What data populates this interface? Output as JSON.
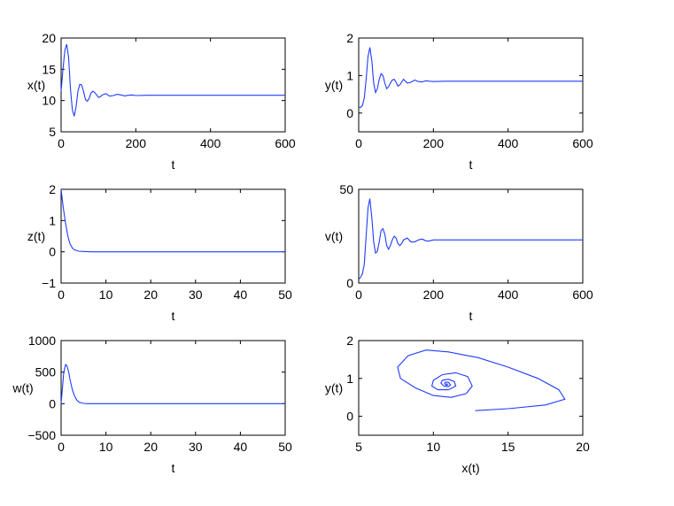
{
  "colors": {
    "line": "#1f3bff",
    "axes": "#000000",
    "background": "#ffffff"
  },
  "chart_data": [
    {
      "id": "x",
      "type": "line",
      "xlabel": "t",
      "ylabel": "x(t)",
      "xlim": [
        0,
        600
      ],
      "ylim": [
        5,
        20
      ],
      "xticks": [
        0,
        200,
        400,
        600
      ],
      "yticks": [
        5,
        10,
        15,
        20
      ],
      "xtick_labels": [
        "0",
        "200",
        "400",
        "600"
      ],
      "ytick_labels": [
        "5",
        "10",
        "15",
        "20"
      ],
      "series": [
        {
          "x": [
            0,
            5,
            10,
            15,
            20,
            25,
            30,
            35,
            40,
            45,
            50,
            55,
            60,
            65,
            70,
            75,
            80,
            85,
            90,
            95,
            100,
            105,
            110,
            120,
            130,
            140,
            150,
            160,
            170,
            180,
            190,
            200,
            230,
            260,
            300,
            400,
            500,
            600
          ],
          "y": [
            11.5,
            15.0,
            18.0,
            19.0,
            17.0,
            12.0,
            8.5,
            7.5,
            9.0,
            11.5,
            12.6,
            12.5,
            11.5,
            10.2,
            9.9,
            10.3,
            11.2,
            11.5,
            11.3,
            10.9,
            10.5,
            10.6,
            10.9,
            11.1,
            10.7,
            10.8,
            11.0,
            10.9,
            10.75,
            10.85,
            10.9,
            10.8,
            10.85,
            10.85,
            10.85,
            10.85,
            10.85,
            10.85
          ]
        }
      ]
    },
    {
      "id": "y",
      "type": "line",
      "xlabel": "t",
      "ylabel": "y(t)",
      "xlim": [
        0,
        600
      ],
      "ylim": [
        -0.5,
        2
      ],
      "xticks": [
        0,
        200,
        400,
        600
      ],
      "yticks": [
        0,
        1,
        2
      ],
      "xtick_labels": [
        "0",
        "200",
        "400",
        "600"
      ],
      "ytick_labels": [
        "0",
        "1",
        "2"
      ],
      "series": [
        {
          "x": [
            0,
            5,
            10,
            15,
            20,
            25,
            30,
            35,
            40,
            45,
            50,
            55,
            60,
            65,
            70,
            75,
            80,
            85,
            90,
            95,
            100,
            105,
            110,
            120,
            130,
            140,
            150,
            160,
            170,
            180,
            190,
            200,
            230,
            300,
            400,
            500,
            600
          ],
          "y": [
            0.15,
            0.15,
            0.2,
            0.4,
            0.9,
            1.5,
            1.75,
            1.4,
            0.8,
            0.55,
            0.65,
            0.9,
            1.05,
            1.0,
            0.8,
            0.65,
            0.7,
            0.8,
            0.88,
            0.9,
            0.82,
            0.72,
            0.75,
            0.9,
            0.8,
            0.82,
            0.88,
            0.84,
            0.83,
            0.86,
            0.85,
            0.84,
            0.85,
            0.85,
            0.85,
            0.85,
            0.85
          ]
        }
      ]
    },
    {
      "id": "z",
      "type": "line",
      "xlabel": "t",
      "ylabel": "z(t)",
      "xlim": [
        0,
        50
      ],
      "ylim": [
        -1,
        2
      ],
      "xticks": [
        0,
        10,
        20,
        30,
        40,
        50
      ],
      "yticks": [
        -1,
        0,
        1,
        2
      ],
      "xtick_labels": [
        "0",
        "10",
        "20",
        "30",
        "40",
        "50"
      ],
      "ytick_labels": [
        "−1",
        "0",
        "1",
        "2"
      ],
      "series": [
        {
          "x": [
            0,
            0.2,
            0.5,
            1,
            1.5,
            2,
            2.5,
            3,
            4,
            5,
            7,
            10,
            20,
            30,
            40,
            50
          ],
          "y": [
            2.0,
            1.75,
            1.4,
            0.9,
            0.5,
            0.25,
            0.12,
            0.06,
            0.02,
            0.01,
            0,
            0,
            0,
            0,
            0,
            0
          ]
        }
      ]
    },
    {
      "id": "v",
      "type": "line",
      "xlabel": "t",
      "ylabel": "v(t)",
      "xlim": [
        0,
        600
      ],
      "ylim": [
        0,
        50
      ],
      "xticks": [
        0,
        200,
        400,
        600
      ],
      "yticks": [
        0,
        50
      ],
      "xtick_labels": [
        "0",
        "200",
        "400",
        "600"
      ],
      "ytick_labels": [
        "0",
        "50"
      ],
      "series": [
        {
          "x": [
            0,
            5,
            10,
            15,
            20,
            25,
            30,
            35,
            40,
            45,
            50,
            55,
            60,
            65,
            70,
            75,
            80,
            85,
            90,
            95,
            100,
            105,
            110,
            115,
            120,
            130,
            140,
            150,
            160,
            170,
            180,
            190,
            200,
            230,
            300,
            400,
            500,
            600
          ],
          "y": [
            2,
            3,
            5,
            10,
            25,
            40,
            45,
            35,
            22,
            16,
            17,
            22,
            28,
            29,
            26,
            20,
            18,
            20,
            23,
            25,
            24,
            21,
            20,
            21,
            23,
            24,
            22,
            22,
            23,
            23.5,
            22.5,
            22.5,
            23,
            23,
            23,
            23,
            23,
            23
          ]
        }
      ]
    },
    {
      "id": "w",
      "type": "line",
      "xlabel": "t",
      "ylabel": "w(t)",
      "xlim": [
        0,
        50
      ],
      "ylim": [
        -500,
        1000
      ],
      "xticks": [
        0,
        10,
        20,
        30,
        40,
        50
      ],
      "yticks": [
        -500,
        0,
        500,
        1000
      ],
      "xtick_labels": [
        "0",
        "10",
        "20",
        "30",
        "40",
        "50"
      ],
      "ytick_labels": [
        "−500",
        "0",
        "500",
        "1000"
      ],
      "series": [
        {
          "x": [
            0,
            0.3,
            0.6,
            1,
            1.3,
            1.7,
            2,
            2.5,
            3,
            3.5,
            4,
            5,
            6,
            8,
            10,
            20,
            30,
            40,
            50
          ],
          "y": [
            0,
            250,
            500,
            620,
            600,
            500,
            380,
            220,
            120,
            60,
            25,
            5,
            0,
            0,
            0,
            0,
            0,
            0,
            0
          ]
        }
      ]
    },
    {
      "id": "phase",
      "type": "line",
      "xlabel": "x(t)",
      "ylabel": "y(t)",
      "xlim": [
        5,
        20
      ],
      "ylim": [
        -0.5,
        2
      ],
      "xticks": [
        5,
        10,
        15,
        20
      ],
      "yticks": [
        0,
        1,
        2
      ],
      "xtick_labels": [
        "5",
        "10",
        "15",
        "20"
      ],
      "ytick_labels": [
        "0",
        "1",
        "2"
      ],
      "series": [
        {
          "x": [
            12.8,
            15.0,
            17.5,
            18.8,
            18.4,
            17.0,
            15.0,
            13.0,
            11.0,
            9.5,
            8.3,
            7.6,
            7.8,
            8.8,
            10.0,
            11.2,
            12.2,
            12.6,
            12.3,
            11.5,
            10.6,
            10.0,
            9.9,
            10.3,
            11.0,
            11.5,
            11.4,
            11.0,
            10.6,
            10.5,
            10.7,
            11.0,
            11.15,
            11.0,
            10.8,
            10.75,
            10.85,
            10.95,
            10.9,
            10.85
          ],
          "y": [
            0.15,
            0.2,
            0.3,
            0.45,
            0.7,
            1.0,
            1.3,
            1.55,
            1.7,
            1.75,
            1.6,
            1.3,
            1.0,
            0.75,
            0.55,
            0.5,
            0.6,
            0.8,
            1.05,
            1.15,
            1.1,
            0.95,
            0.8,
            0.7,
            0.7,
            0.8,
            0.92,
            0.98,
            0.95,
            0.88,
            0.8,
            0.78,
            0.83,
            0.9,
            0.9,
            0.86,
            0.82,
            0.83,
            0.86,
            0.85
          ]
        }
      ]
    }
  ]
}
